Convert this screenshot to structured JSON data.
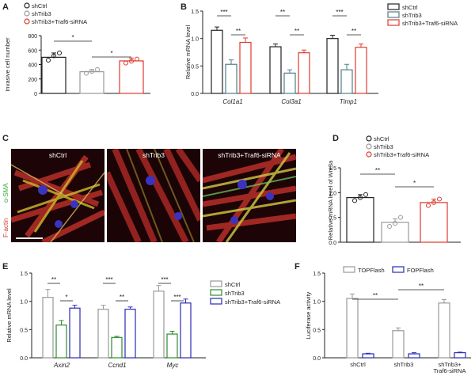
{
  "panels": {
    "A": {
      "letter": "A"
    },
    "B": {
      "letter": "B"
    },
    "C": {
      "letter": "C"
    },
    "D": {
      "letter": "D"
    },
    "E": {
      "letter": "E"
    },
    "F": {
      "letter": "F"
    }
  },
  "micro": {
    "captions": [
      "shCtrl",
      "shTrib3",
      "shTrib3+Traf6-siRNA"
    ],
    "stain_red": "F-actin",
    "stain_green": "α-SMA"
  },
  "colors": {
    "ctrl": "#222222",
    "trib3": "#2e8b2e",
    "traf6": "#e03a2e",
    "traf6_blue": "#2a2ab8",
    "gray": "#999999",
    "teal": "#4d7f8a"
  },
  "chart_data": [
    {
      "id": "A",
      "type": "bar",
      "categories": [
        "shCtrl",
        "shTrib3",
        "shTrib3+Traf6-siRNA"
      ],
      "values": [
        500,
        300,
        450
      ],
      "errors": [
        60,
        30,
        40
      ],
      "points": [
        [
          460,
          520,
          560
        ],
        [
          280,
          305,
          330
        ],
        [
          420,
          445,
          475
        ]
      ],
      "legend": [
        "shCtrl",
        "shTrib3",
        "shTrib3+Traf6-siRNA"
      ],
      "ylabel": "Invasive cell number",
      "yticks": [
        0,
        200,
        400,
        600,
        800
      ],
      "ylim": [
        0,
        800
      ],
      "significance": [
        "*",
        "*"
      ]
    },
    {
      "id": "B",
      "type": "bar",
      "categories": [
        "Col1a1",
        "Col3a1",
        "Timp1"
      ],
      "series": [
        {
          "name": "shCtrl",
          "values": [
            1.15,
            0.85,
            1.0
          ],
          "errors": [
            0.06,
            0.05,
            0.06
          ]
        },
        {
          "name": "shTrib3",
          "values": [
            0.53,
            0.37,
            0.43
          ],
          "errors": [
            0.08,
            0.06,
            0.1
          ]
        },
        {
          "name": "shTrib3+Traf6-siRNA",
          "values": [
            0.93,
            0.74,
            0.84
          ],
          "errors": [
            0.08,
            0.05,
            0.06
          ]
        }
      ],
      "ylabel": "Relative mRNA level",
      "yticks": [
        "0.0",
        "0.5",
        "1.0",
        "1.5"
      ],
      "ylim": [
        0,
        1.5
      ],
      "significance": [
        [
          "***",
          "**"
        ],
        [
          "**",
          "**"
        ],
        [
          "***",
          "**"
        ]
      ]
    },
    {
      "id": "D",
      "type": "bar",
      "categories": [
        "shCtrl",
        "shTrib3",
        "shTrib3+Traf6-siRNA"
      ],
      "values": [
        0.9,
        0.4,
        0.8
      ],
      "errors": [
        0.06,
        0.07,
        0.07
      ],
      "points": [
        [
          0.84,
          0.9,
          0.96
        ],
        [
          0.32,
          0.38,
          0.5
        ],
        [
          0.74,
          0.8,
          0.87
        ]
      ],
      "legend": [
        "shCtrl",
        "shTrib3",
        "shTrib3+Traf6-siRNA"
      ],
      "ylabel": "Relative mRNA level of Wnt3a",
      "yticks": [
        "0.0",
        "0.5",
        "1.0",
        "1.5"
      ],
      "ylim": [
        0,
        1.5
      ],
      "significance": [
        "**",
        "*"
      ]
    },
    {
      "id": "E",
      "type": "bar",
      "categories": [
        "Axin2",
        "Ccnd1",
        "Myc"
      ],
      "series": [
        {
          "name": "shCtrl",
          "values": [
            1.07,
            0.86,
            1.18
          ],
          "errors": [
            0.14,
            0.07,
            0.1
          ]
        },
        {
          "name": "shTrib3",
          "values": [
            0.58,
            0.36,
            0.42
          ],
          "errors": [
            0.08,
            0.02,
            0.05
          ]
        },
        {
          "name": "shTrib3+Traf6-siRNA",
          "values": [
            0.88,
            0.86,
            0.97
          ],
          "errors": [
            0.05,
            0.04,
            0.07
          ]
        }
      ],
      "ylabel": "Relative mRNA level",
      "yticks": [
        "0.0",
        "0.5",
        "1.0",
        "1.5"
      ],
      "ylim": [
        0,
        1.5
      ],
      "significance": [
        [
          "**",
          "*"
        ],
        [
          "***",
          "**"
        ],
        [
          "***",
          "***"
        ]
      ]
    },
    {
      "id": "F",
      "type": "bar",
      "categories": [
        "shCtrl",
        "shTrib3",
        "shTrib3+Traf6-siRNA"
      ],
      "series": [
        {
          "name": "TOPFlash",
          "values": [
            1.05,
            0.48,
            0.97
          ],
          "errors": [
            0.08,
            0.05,
            0.06
          ]
        },
        {
          "name": "FOPFlash",
          "values": [
            0.07,
            0.07,
            0.09
          ],
          "errors": [
            0.01,
            0.02,
            0.01
          ]
        }
      ],
      "ylabel": "Luciferase activity",
      "yticks": [
        "0.0",
        "0.5",
        "1.0",
        "1.5"
      ],
      "ylim": [
        0,
        1.5
      ],
      "significance": [
        "**",
        "**"
      ]
    }
  ]
}
